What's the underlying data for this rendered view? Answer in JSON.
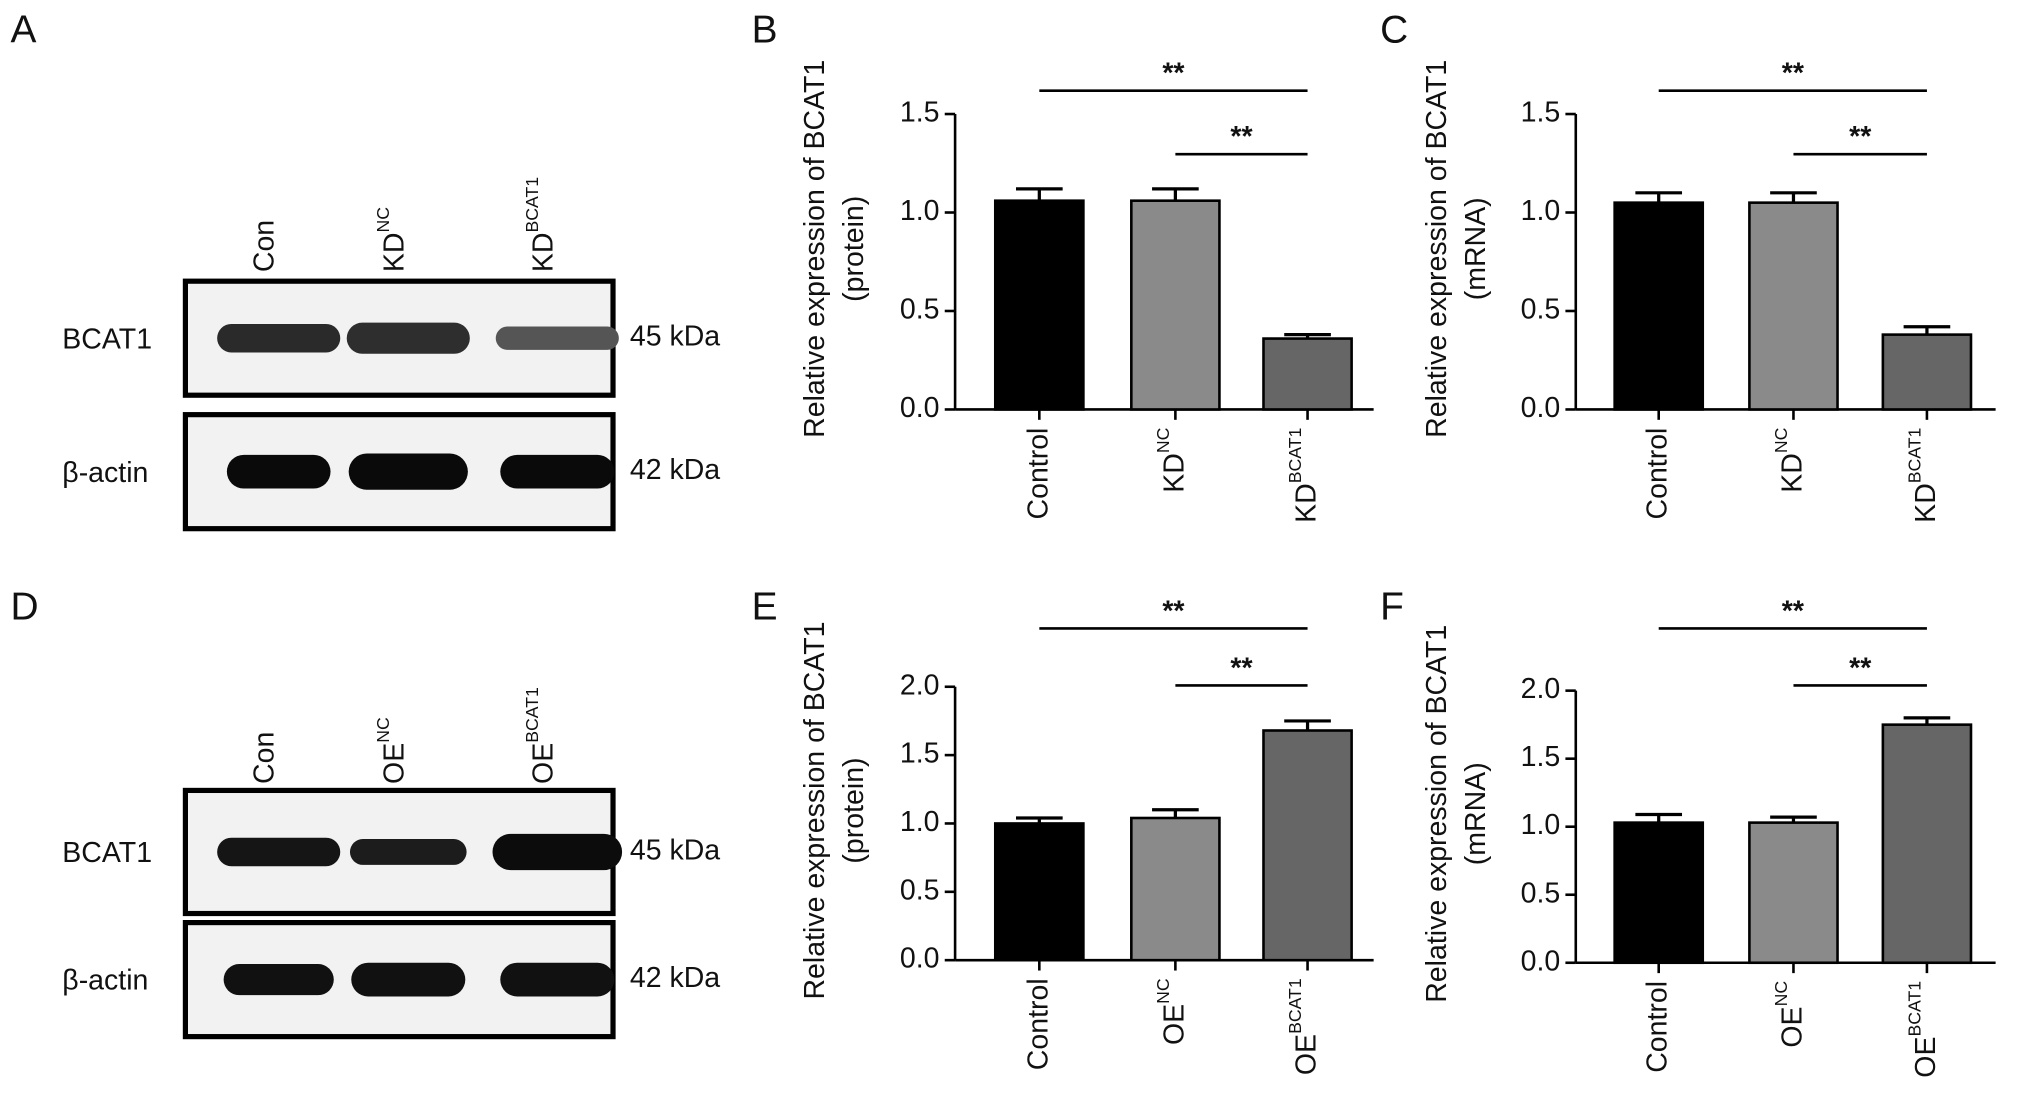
{
  "blots": [
    {
      "panel": "A",
      "lanes": [
        "Con",
        "KD",
        "KD"
      ],
      "lane_superscripts": [
        null,
        "NC",
        "BCAT1"
      ],
      "rows": [
        {
          "label": "BCAT1",
          "size": "45 kDa"
        },
        {
          "label": "β-actin",
          "size": "42 kDa"
        }
      ]
    },
    {
      "panel": "D",
      "lanes": [
        "Con",
        "OE",
        "OE"
      ],
      "lane_superscripts": [
        null,
        "NC",
        "BCAT1"
      ],
      "rows": [
        {
          "label": "BCAT1",
          "size": "45 kDa"
        },
        {
          "label": "β-actin",
          "size": "42 kDa"
        }
      ]
    }
  ],
  "chart_data": [
    {
      "type": "bar",
      "panel": "B",
      "y_label": [
        "Relative expression of BCAT1",
        "(protein)"
      ],
      "categories": [
        "Control",
        "KD",
        "KD"
      ],
      "category_superscripts": [
        null,
        "NC",
        "BCAT1"
      ],
      "values": [
        1.06,
        1.06,
        0.36
      ],
      "errors": [
        0.06,
        0.06,
        0.02
      ],
      "colors": [
        "#000000",
        "#8a8a8a",
        "#666666"
      ],
      "ylim": [
        0,
        1.5
      ],
      "yticks": [
        {
          "value": 0,
          "label": "0.0"
        },
        0.5,
        {
          "value": 1,
          "label": "1.0"
        },
        1.5
      ],
      "annotations": [
        "**",
        "**"
      ]
    },
    {
      "type": "bar",
      "panel": "C",
      "y_label": [
        "Relative expression of BCAT1",
        "(mRNA)"
      ],
      "categories": [
        "Control",
        "KD",
        "KD"
      ],
      "category_superscripts": [
        null,
        "NC",
        "BCAT1"
      ],
      "values": [
        1.05,
        1.05,
        0.38
      ],
      "errors": [
        0.05,
        0.05,
        0.04
      ],
      "colors": [
        "#000000",
        "#8a8a8a",
        "#666666"
      ],
      "ylim": [
        0,
        1.5
      ],
      "yticks": [
        {
          "value": 0,
          "label": "0.0"
        },
        0.5,
        {
          "value": 1,
          "label": "1.0"
        },
        1.5
      ],
      "annotations": [
        "**",
        "**"
      ]
    },
    {
      "type": "bar",
      "panel": "E",
      "y_label": [
        "Relative expression of BCAT1",
        "(protein)"
      ],
      "categories": [
        "Control",
        "OE",
        "OE"
      ],
      "category_superscripts": [
        null,
        "NC",
        "BCAT1"
      ],
      "values": [
        1.0,
        1.04,
        1.68
      ],
      "errors": [
        0.04,
        0.06,
        0.07
      ],
      "colors": [
        "#000000",
        "#8a8a8a",
        "#666666"
      ],
      "ylim": [
        0,
        2
      ],
      "yticks": [
        {
          "value": 0,
          "label": "0.0"
        },
        0.5,
        {
          "value": 1,
          "label": "1.0"
        },
        1.5,
        {
          "value": 2,
          "label": "2.0"
        }
      ],
      "annotations": [
        "**",
        "**"
      ]
    },
    {
      "type": "bar",
      "panel": "F",
      "y_label": [
        "Relative expression of BCAT1",
        "(mRNA)"
      ],
      "categories": [
        "Control",
        "OE",
        "OE"
      ],
      "category_superscripts": [
        null,
        "NC",
        "BCAT1"
      ],
      "values": [
        1.03,
        1.03,
        1.75
      ],
      "errors": [
        0.06,
        0.04,
        0.05
      ],
      "colors": [
        "#000000",
        "#8a8a8a",
        "#666666"
      ],
      "ylim": [
        0,
        2
      ],
      "yticks": [
        {
          "value": 0,
          "label": "0.0"
        },
        0.5,
        {
          "value": 1,
          "label": "1.0"
        },
        1.5,
        {
          "value": 2,
          "label": "2.0"
        }
      ],
      "annotations": [
        "**",
        "**"
      ]
    }
  ]
}
